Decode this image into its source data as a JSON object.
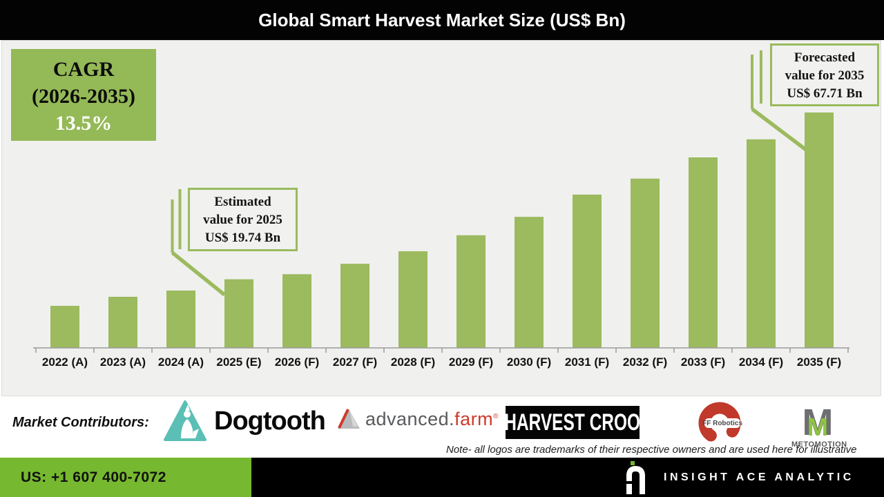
{
  "header": {
    "title": "Global Smart Harvest Market Size (US$ Bn)"
  },
  "cagr_box": {
    "line1": "CAGR",
    "line2": "(2026-2035)",
    "line3": "13.5%"
  },
  "chart_data": {
    "type": "bar",
    "title": "Global Smart Harvest Market Size (US$ Bn)",
    "categories": [
      "2022 (A)",
      "2023 (A)",
      "2024 (A)",
      "2025 (E)",
      "2026 (F)",
      "2027 (F)",
      "2028 (F)",
      "2029 (F)",
      "2030 (F)",
      "2031 (F)",
      "2032 (F)",
      "2033 (F)",
      "2034 (F)",
      "2035 (F)"
    ],
    "values": [
      12.1,
      14.7,
      16.5,
      19.74,
      21.2,
      24.2,
      27.8,
      32.4,
      37.7,
      44.1,
      48.7,
      54.8,
      60.0,
      67.71
    ],
    "unit": "US$ Bn",
    "ylabel": "",
    "xlabel": "",
    "ylim": [
      0,
      72
    ],
    "grid": false,
    "legend": "none",
    "bar_color": "#9CBA5E",
    "annotations": [
      {
        "target": "2025 (E)",
        "text": "Estimated value for 2025 US$ 19.74 Bn"
      },
      {
        "target": "2035 (F)",
        "text": "Forecasted value for 2035 US$ 67.71 Bn"
      }
    ],
    "cagr": "CAGR (2026-2035) 13.5%"
  },
  "callouts": {
    "estimated": {
      "line1": "Estimated",
      "line2": "value for 2025",
      "line3": "US$ 19.74 Bn"
    },
    "forecasted": {
      "line1": "Forecasted",
      "line2": "value for 2035",
      "line3": "US$ 67.71 Bn"
    }
  },
  "contributors": {
    "label": "Market Contributors:",
    "logos": [
      {
        "name": "Dogtooth",
        "text": "Dogtooth"
      },
      {
        "name": "advanced.farm",
        "text_main": "advanced",
        "text_dot": ".",
        "text_accent": "farm",
        "reg": "®"
      },
      {
        "name": "Harvest CROO",
        "text": "HARVEST CROO"
      },
      {
        "name": "FF Robotics",
        "text": "FF Robotics"
      },
      {
        "name": "MetoMotion",
        "text": "METOMOTION"
      }
    ]
  },
  "note": "Note- all logos are trademarks of their respective owners and are used here for illustrative purposes only",
  "footer": {
    "phone": "US: +1 607 400-7072",
    "brand": "INSIGHT ACE ANALYTIC"
  },
  "colors": {
    "header_bg": "#030303",
    "chart_bg": "#F0F0EE",
    "bar_green": "#9CBA5E",
    "cagr_green": "#94B957",
    "footer_green": "#76B82F",
    "axis_gray": "#9B9B9B"
  }
}
